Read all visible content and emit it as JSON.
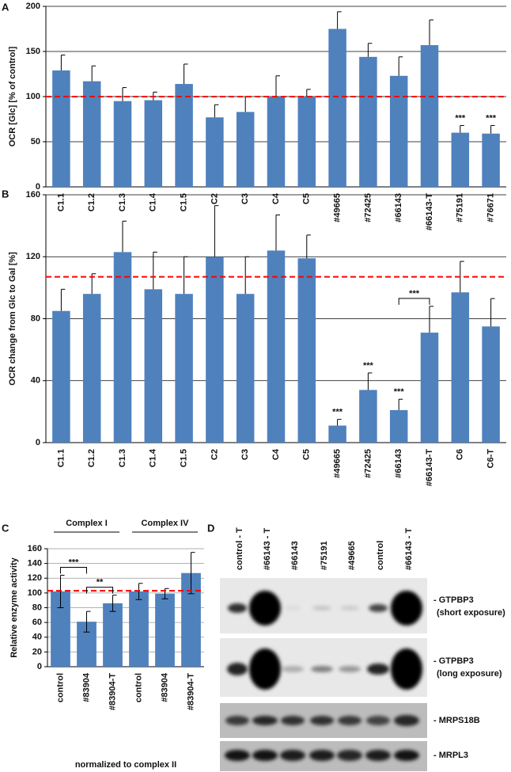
{
  "chart_data": [
    {
      "type": "bar",
      "panel_label": "A",
      "ylabel": "OCR [Glc] [% of control]",
      "categories": [
        "C1.1",
        "C1.2",
        "C1.3",
        "C1.4",
        "C1.5",
        "C2",
        "C3",
        "C4",
        "C5",
        "#49665",
        "#72425",
        "#66143",
        "#66143-T",
        "#75191",
        "#76671"
      ],
      "values": [
        129,
        117,
        95,
        96,
        114,
        77,
        83,
        100,
        100,
        175,
        144,
        123,
        157,
        60,
        59
      ],
      "errors": [
        17,
        17,
        15,
        9,
        22,
        14,
        17,
        23,
        8,
        19,
        15,
        21,
        28,
        8,
        9
      ],
      "error_bars": "up",
      "color": "#4f81bd",
      "ylim": [
        0,
        200
      ],
      "yticks": [
        0,
        50,
        100,
        150,
        200
      ],
      "grid": true,
      "reference_line": 100,
      "reference_color": "#ff0000",
      "annotations": [
        {
          "text": "***",
          "x": "#75191"
        },
        {
          "text": "***",
          "x": "#76671"
        }
      ]
    },
    {
      "type": "bar",
      "panel_label": "B",
      "ylabel": "OCR change from Glc to Gal [%]",
      "categories": [
        "C1.1",
        "C1.2",
        "C1.3",
        "C1.4",
        "C1.5",
        "C2",
        "C3",
        "C4",
        "C5",
        "#49665",
        "#72425",
        "#66143",
        "#66143-T",
        "C6",
        "C6-T"
      ],
      "values": [
        85,
        96,
        123,
        99,
        96,
        120,
        96,
        124,
        119,
        11,
        34,
        21,
        71,
        97,
        75
      ],
      "errors": [
        14,
        13,
        20,
        24,
        24,
        33,
        24,
        23,
        15,
        4,
        11,
        7,
        17,
        20,
        18
      ],
      "error_bars": "up",
      "color": "#4f81bd",
      "ylim": [
        0,
        160
      ],
      "yticks": [
        0,
        40,
        80,
        120,
        160
      ],
      "grid": true,
      "reference_line": 107,
      "reference_color": "#ff0000",
      "annotations": [
        {
          "text": "***",
          "x": "#49665"
        },
        {
          "text": "***",
          "x": "#72425"
        },
        {
          "text": "***",
          "x": "#66143"
        },
        {
          "text": "***",
          "x": [
            "#66143",
            "#66143-T"
          ]
        }
      ]
    },
    {
      "type": "bar",
      "panel_label": "C",
      "ylabel": "Relative enzyme activity",
      "xlabel": "normalized to complex II",
      "groups": [
        "Complex I",
        "Complex IV"
      ],
      "categories": [
        "control",
        "#83904",
        "#83904-T",
        "control",
        "#83904",
        "#83904-T"
      ],
      "values": [
        102,
        61,
        86,
        102,
        99,
        127
      ],
      "errors": [
        22,
        14,
        11,
        11,
        7,
        28
      ],
      "error_bars": "both",
      "color": "#4f81bd",
      "ylim": [
        0,
        160
      ],
      "yticks": [
        0,
        20,
        40,
        60,
        80,
        100,
        120,
        140,
        160
      ],
      "grid": true,
      "reference_line": 103,
      "reference_color": "#ff0000",
      "annotations": [
        {
          "text": "***",
          "x": [
            "control",
            "#83904"
          ]
        },
        {
          "text": "**",
          "x": [
            "#83904",
            "#83904-T"
          ]
        }
      ]
    }
  ],
  "blot": {
    "panel_label": "D",
    "lanes": [
      "control - T",
      "#66143 - T",
      "#66143",
      "#75191",
      "#49665",
      "control",
      "#66143 - T"
    ],
    "bands": [
      {
        "label": "- GTPBP3",
        "note": "(short exposure)"
      },
      {
        "label": "- GTPBP3",
        "note": "(long exposure)"
      },
      {
        "label": "- MRPS18B"
      },
      {
        "label": "- MRPL3"
      }
    ]
  }
}
